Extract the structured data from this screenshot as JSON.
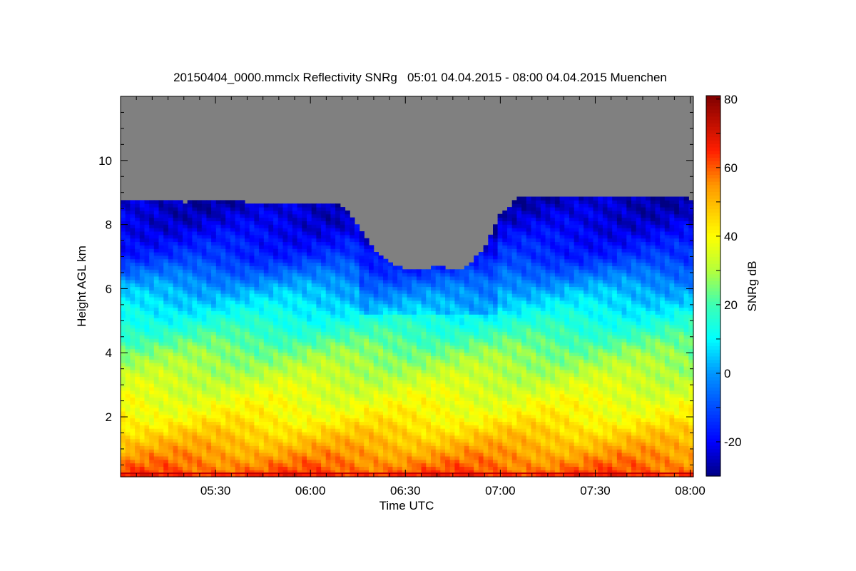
{
  "chart_data": {
    "type": "heatmap",
    "title": "20150404_0000.mmclx Reflectivity SNRg   05:01 04.04.2015 - 08:00 04.04.2015 Muenchen",
    "xlabel": "Time UTC",
    "ylabel": "Height AGL km",
    "colorbar_label": "SNRg dB",
    "x_range_minutes_utc": [
      300,
      481
    ],
    "x_ticks": [
      {
        "label": "05:30",
        "value": 330
      },
      {
        "label": "06:00",
        "value": 360
      },
      {
        "label": "06:30",
        "value": 390
      },
      {
        "label": "07:00",
        "value": 420
      },
      {
        "label": "07:30",
        "value": 450
      },
      {
        "label": "08:00",
        "value": 480
      }
    ],
    "y_range_km": [
      0.13,
      12.0
    ],
    "y_ticks": [
      {
        "label": "2",
        "value": 2
      },
      {
        "label": "4",
        "value": 4
      },
      {
        "label": "6",
        "value": 6
      },
      {
        "label": "8",
        "value": 8
      },
      {
        "label": "10",
        "value": 10
      }
    ],
    "colorbar_range_db": [
      -30,
      81
    ],
    "colorbar_ticks": [
      {
        "label": "-20",
        "value": -20
      },
      {
        "label": "0",
        "value": 0
      },
      {
        "label": "20",
        "value": 20
      },
      {
        "label": "40",
        "value": 40
      },
      {
        "label": "60",
        "value": 60
      },
      {
        "label": "80",
        "value": 80
      }
    ],
    "no_signal_color": "#808080",
    "mean_profile": {
      "height_km": [
        0.13,
        0.3,
        1.0,
        2.0,
        3.0,
        4.0,
        5.0,
        6.0,
        7.0,
        8.0,
        9.0
      ],
      "snr_db": [
        68,
        60,
        52,
        41,
        34,
        26,
        14,
        2,
        -14,
        -22,
        -27
      ]
    },
    "cloud_top": {
      "time_minutes_utc": [
        300,
        310,
        320,
        330,
        340,
        350,
        360,
        370,
        375,
        380,
        385,
        390,
        395,
        400,
        405,
        410,
        415,
        420,
        425,
        430,
        440,
        450,
        460,
        470,
        481
      ],
      "height_km": [
        8.8,
        8.8,
        8.7,
        8.8,
        8.7,
        8.6,
        8.7,
        8.6,
        8.0,
        7.2,
        6.8,
        6.6,
        6.6,
        6.7,
        6.6,
        6.7,
        7.3,
        8.3,
        8.8,
        8.9,
        8.9,
        8.9,
        8.9,
        8.9,
        8.8
      ]
    }
  }
}
